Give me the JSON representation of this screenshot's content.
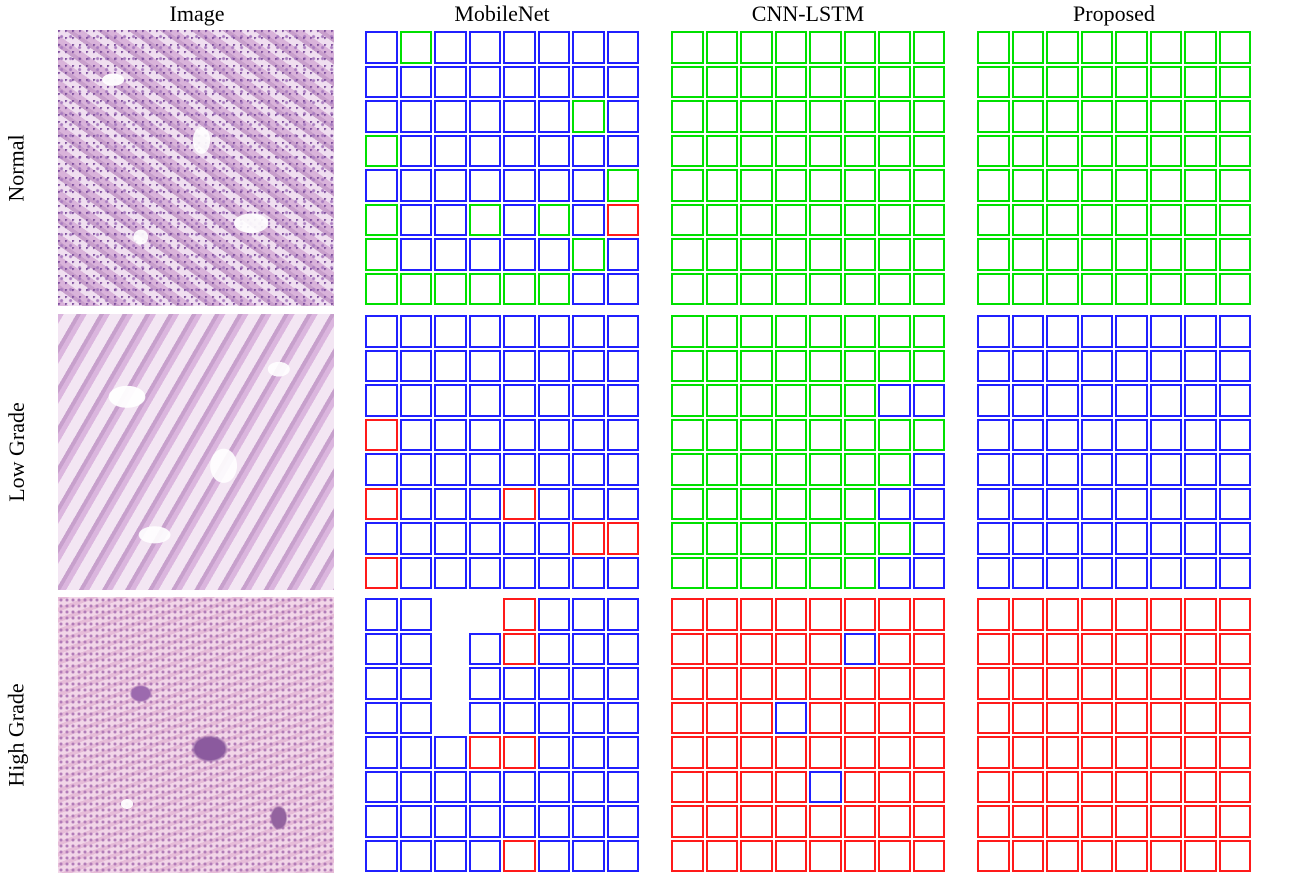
{
  "columns": [
    "Image",
    "MobileNet",
    "CNN-LSTM",
    "Proposed"
  ],
  "rows": [
    "Normal",
    "Low Grade",
    "High Grade"
  ],
  "colors": {
    "green": "#00e000",
    "blue": "#2020ff",
    "red": "#ff1a1a"
  },
  "predictions": {
    "normal": {
      "mobilenet": [
        "bgbbbbbb",
        "bbbbbbbb",
        "bbbbbbgb",
        "gbbbbbbb",
        "bbbbbbbg",
        "gbbgbgbr",
        "gbbbbbgb",
        "ggggggbb"
      ],
      "cnn_lstm": [
        "gggggggg",
        "gggggggg",
        "gggggggg",
        "gggggggg",
        "gggggggg",
        "gggggggg",
        "gggggggg",
        "gggggggg"
      ],
      "proposed": [
        "gggggggg",
        "gggggggg",
        "gggggggg",
        "gggggggg",
        "gggggggg",
        "gggggggg",
        "gggggggg",
        "gggggggg"
      ]
    },
    "low_grade": {
      "mobilenet": [
        "bbbbbbbb",
        "bbbbbbbb",
        "bbbbbbbb",
        "rbbbbbbb",
        "bbbbbbbb",
        "rbbbrbbb",
        "bbbbbbrr",
        "rbbbbbbb"
      ],
      "cnn_lstm": [
        "gggggggg",
        "gggggggg",
        "ggggggbb",
        "gggggggg",
        "gggggggb",
        "ggggggbb",
        "gggggggb",
        "ggggggbb"
      ],
      "proposed": [
        "bbbbbbbb",
        "bbbbbbbb",
        "bbbbbbbb",
        "bbbbbbbb",
        "bbbbbbbb",
        "bbbbbbbb",
        "bbbbbbbb",
        "bbbbbbbb"
      ]
    },
    "high_grade": {
      "mobilenet": [
        "bbnnrbbb",
        "bbnbrbbb",
        "bbnbbbbb",
        "bbnbbbbb",
        "bbbrrbbb",
        "bbbbbbbb",
        "bbbbbbbb",
        "bbbbrbbb"
      ],
      "cnn_lstm": [
        "rrrrrrrr",
        "rrrrrbrr",
        "rrrrrrrr",
        "rrrbrrrr",
        "rrrrrrrr",
        "rrrrbrrr",
        "rrrrrrrr",
        "rrrrrrrr"
      ],
      "proposed": [
        "rrrrrrrr",
        "rrrrrrrr",
        "rrrrrrrr",
        "rrrrrrrr",
        "rrrrrrrr",
        "rrrrrrrr",
        "rrrrrrrr",
        "rrrrrrrr"
      ]
    }
  }
}
